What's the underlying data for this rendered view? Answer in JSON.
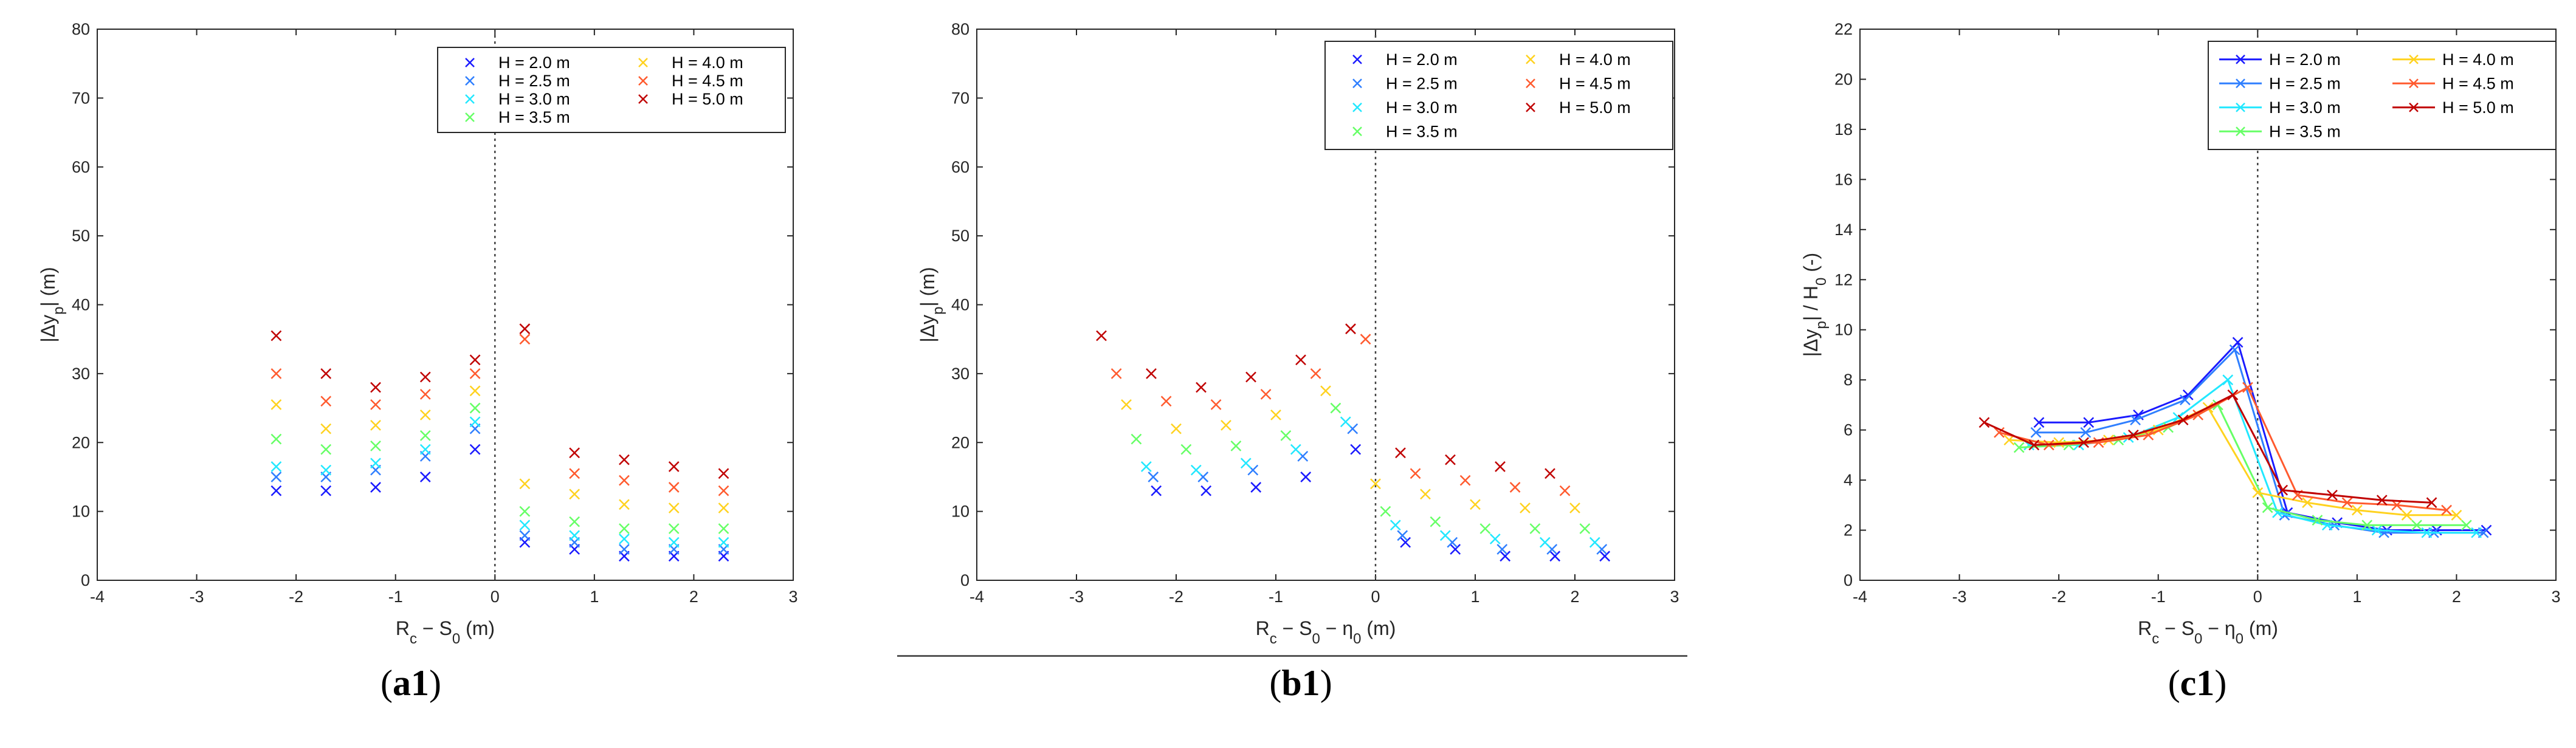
{
  "captions": [
    {
      "open": "(",
      "id": "a1",
      "close": ")"
    },
    {
      "open": "(",
      "id": "b1",
      "close": ")"
    },
    {
      "open": "(",
      "id": "c1",
      "close": ")"
    }
  ],
  "series_colors": [
    "#1a1aff",
    "#2f7fff",
    "#22e8ff",
    "#66ff66",
    "#ffd21f",
    "#ff5a2e",
    "#c00000"
  ],
  "chart_data": [
    {
      "type": "scatter",
      "xlabel": "R_c − S_0 (m)",
      "ylabel": "|Δy_p| (m)",
      "xlim": [
        -4,
        3
      ],
      "ylim": [
        0,
        80
      ],
      "xticks": [
        -4,
        -3,
        -2,
        -1,
        0,
        1,
        2,
        3
      ],
      "yticks": [
        0,
        10,
        20,
        30,
        40,
        50,
        60,
        70,
        80
      ],
      "vline_x": 0,
      "grid": false,
      "legend_position": "top-right",
      "series": [
        {
          "name": "H = 2.0 m",
          "points": [
            [
              -2.2,
              13
            ],
            [
              -1.7,
              13
            ],
            [
              -1.2,
              13.5
            ],
            [
              -0.7,
              15
            ],
            [
              -0.2,
              19
            ],
            [
              0.3,
              5.5
            ],
            [
              0.8,
              4.5
            ],
            [
              1.3,
              3.5
            ],
            [
              1.8,
              3.5
            ],
            [
              2.3,
              3.5
            ]
          ]
        },
        {
          "name": "H = 2.5 m",
          "points": [
            [
              -2.2,
              15
            ],
            [
              -1.7,
              15
            ],
            [
              -1.2,
              16
            ],
            [
              -0.7,
              18
            ],
            [
              -0.2,
              22
            ],
            [
              0.3,
              6.5
            ],
            [
              0.8,
              5.5
            ],
            [
              1.3,
              4.5
            ],
            [
              1.8,
              4.5
            ],
            [
              2.3,
              4.5
            ]
          ]
        },
        {
          "name": "H = 3.0 m",
          "points": [
            [
              -2.2,
              16.5
            ],
            [
              -1.7,
              16
            ],
            [
              -1.2,
              17
            ],
            [
              -0.7,
              19
            ],
            [
              -0.2,
              23
            ],
            [
              0.3,
              8
            ],
            [
              0.8,
              6.5
            ],
            [
              1.3,
              6
            ],
            [
              1.8,
              5.5
            ],
            [
              2.3,
              5.5
            ]
          ]
        },
        {
          "name": "H = 3.5 m",
          "points": [
            [
              -2.2,
              20.5
            ],
            [
              -1.7,
              19
            ],
            [
              -1.2,
              19.5
            ],
            [
              -0.7,
              21
            ],
            [
              -0.2,
              25
            ],
            [
              0.3,
              10
            ],
            [
              0.8,
              8.5
            ],
            [
              1.3,
              7.5
            ],
            [
              1.8,
              7.5
            ],
            [
              2.3,
              7.5
            ]
          ]
        },
        {
          "name": "H = 4.0 m",
          "points": [
            [
              -2.2,
              25.5
            ],
            [
              -1.7,
              22
            ],
            [
              -1.2,
              22.5
            ],
            [
              -0.7,
              24
            ],
            [
              -0.2,
              27.5
            ],
            [
              0.3,
              14
            ],
            [
              0.8,
              12.5
            ],
            [
              1.3,
              11
            ],
            [
              1.8,
              10.5
            ],
            [
              2.3,
              10.5
            ]
          ]
        },
        {
          "name": "H = 4.5 m",
          "points": [
            [
              -2.2,
              30
            ],
            [
              -1.7,
              26
            ],
            [
              -1.2,
              25.5
            ],
            [
              -0.7,
              27
            ],
            [
              -0.2,
              30
            ],
            [
              0.3,
              35
            ],
            [
              0.8,
              15.5
            ],
            [
              1.3,
              14.5
            ],
            [
              1.8,
              13.5
            ],
            [
              2.3,
              13
            ]
          ]
        },
        {
          "name": "H = 5.0 m",
          "points": [
            [
              -2.2,
              35.5
            ],
            [
              -1.7,
              30
            ],
            [
              -1.2,
              28
            ],
            [
              -0.7,
              29.5
            ],
            [
              -0.2,
              32
            ],
            [
              0.3,
              36.5
            ],
            [
              0.8,
              18.5
            ],
            [
              1.3,
              17.5
            ],
            [
              1.8,
              16.5
            ],
            [
              2.3,
              15.5
            ]
          ]
        }
      ]
    },
    {
      "type": "scatter",
      "xlabel": "R_c − S_0 − η_0 (m)",
      "ylabel": "|Δy_p| (m)",
      "xlim": [
        -4,
        3
      ],
      "ylim": [
        0,
        80
      ],
      "xticks": [
        -4,
        -3,
        -2,
        -1,
        0,
        1,
        2,
        3
      ],
      "yticks": [
        0,
        10,
        20,
        30,
        40,
        50,
        60,
        70,
        80
      ],
      "vline_x": 0,
      "grid": false,
      "legend_position": "top-right",
      "series": [
        {
          "name": "H = 2.0 m",
          "points": [
            [
              -2.2,
              13
            ],
            [
              -1.7,
              13
            ],
            [
              -1.2,
              13.5
            ],
            [
              -0.7,
              15
            ],
            [
              -0.2,
              19
            ],
            [
              0.3,
              5.5
            ],
            [
              0.8,
              4.5
            ],
            [
              1.3,
              3.5
            ],
            [
              1.8,
              3.5
            ],
            [
              2.3,
              3.5
            ]
          ]
        },
        {
          "name": "H = 2.5 m",
          "points": [
            [
              -2.23,
              15
            ],
            [
              -1.73,
              15
            ],
            [
              -1.23,
              16
            ],
            [
              -0.73,
              18
            ],
            [
              -0.23,
              22
            ],
            [
              0.27,
              6.5
            ],
            [
              0.77,
              5.5
            ],
            [
              1.27,
              4.5
            ],
            [
              1.77,
              4.5
            ],
            [
              2.27,
              4.5
            ]
          ]
        },
        {
          "name": "H = 3.0 m",
          "points": [
            [
              -2.3,
              16.5
            ],
            [
              -1.8,
              16
            ],
            [
              -1.3,
              17
            ],
            [
              -0.8,
              19
            ],
            [
              -0.3,
              23
            ],
            [
              0.2,
              8
            ],
            [
              0.7,
              6.5
            ],
            [
              1.2,
              6
            ],
            [
              1.7,
              5.5
            ],
            [
              2.2,
              5.5
            ]
          ]
        },
        {
          "name": "H = 3.5 m",
          "points": [
            [
              -2.4,
              20.5
            ],
            [
              -1.9,
              19
            ],
            [
              -1.4,
              19.5
            ],
            [
              -0.9,
              21
            ],
            [
              -0.4,
              25
            ],
            [
              0.1,
              10
            ],
            [
              0.6,
              8.5
            ],
            [
              1.1,
              7.5
            ],
            [
              1.6,
              7.5
            ],
            [
              2.1,
              7.5
            ]
          ]
        },
        {
          "name": "H = 4.0 m",
          "points": [
            [
              -2.5,
              25.5
            ],
            [
              -2.0,
              22
            ],
            [
              -1.5,
              22.5
            ],
            [
              -1.0,
              24
            ],
            [
              -0.5,
              27.5
            ],
            [
              0.0,
              14
            ],
            [
              0.5,
              12.5
            ],
            [
              1.0,
              11
            ],
            [
              1.5,
              10.5
            ],
            [
              2.0,
              10.5
            ]
          ]
        },
        {
          "name": "H = 4.5 m",
          "points": [
            [
              -2.6,
              30
            ],
            [
              -2.1,
              26
            ],
            [
              -1.6,
              25.5
            ],
            [
              -1.1,
              27
            ],
            [
              -0.6,
              30
            ],
            [
              -0.1,
              35
            ],
            [
              0.4,
              15.5
            ],
            [
              0.9,
              14.5
            ],
            [
              1.4,
              13.5
            ],
            [
              1.9,
              13
            ]
          ]
        },
        {
          "name": "H = 5.0 m",
          "points": [
            [
              -2.75,
              35.5
            ],
            [
              -2.25,
              30
            ],
            [
              -1.75,
              28
            ],
            [
              -1.25,
              29.5
            ],
            [
              -0.75,
              32
            ],
            [
              -0.25,
              36.5
            ],
            [
              0.25,
              18.5
            ],
            [
              0.75,
              17.5
            ],
            [
              1.25,
              16.5
            ],
            [
              1.75,
              15.5
            ]
          ]
        }
      ]
    },
    {
      "type": "line",
      "xlabel": "R_c − S_0 − η_0 (m)",
      "ylabel": "|Δy_p| / H_0 (-)",
      "xlim": [
        -4,
        3
      ],
      "ylim": [
        0,
        22
      ],
      "xticks": [
        -4,
        -3,
        -2,
        -1,
        0,
        1,
        2,
        3
      ],
      "yticks": [
        0,
        2,
        4,
        6,
        8,
        10,
        12,
        14,
        16,
        18,
        20,
        22
      ],
      "vline_x": 0,
      "grid": false,
      "legend_position": "top-right",
      "series": [
        {
          "name": "H = 2.0 m",
          "points": [
            [
              -2.2,
              6.3
            ],
            [
              -1.7,
              6.3
            ],
            [
              -1.2,
              6.6
            ],
            [
              -0.7,
              7.4
            ],
            [
              -0.2,
              9.5
            ],
            [
              0.3,
              2.7
            ],
            [
              0.8,
              2.3
            ],
            [
              1.3,
              2.0
            ],
            [
              1.8,
              2.0
            ],
            [
              2.3,
              2.0
            ]
          ]
        },
        {
          "name": "H = 2.5 m",
          "points": [
            [
              -2.23,
              5.9
            ],
            [
              -1.73,
              5.9
            ],
            [
              -1.23,
              6.4
            ],
            [
              -0.73,
              7.2
            ],
            [
              -0.23,
              9.2
            ],
            [
              0.27,
              2.6
            ],
            [
              0.77,
              2.2
            ],
            [
              1.27,
              1.9
            ],
            [
              1.77,
              1.9
            ],
            [
              2.27,
              1.9
            ]
          ]
        },
        {
          "name": "H = 3.0 m",
          "points": [
            [
              -2.3,
              5.4
            ],
            [
              -1.8,
              5.4
            ],
            [
              -1.3,
              5.7
            ],
            [
              -0.8,
              6.5
            ],
            [
              -0.3,
              8.0
            ],
            [
              0.2,
              2.7
            ],
            [
              0.7,
              2.2
            ],
            [
              1.2,
              2.0
            ],
            [
              1.7,
              1.9
            ],
            [
              2.2,
              1.9
            ]
          ]
        },
        {
          "name": "H = 3.5 m",
          "points": [
            [
              -2.4,
              5.3
            ],
            [
              -1.9,
              5.4
            ],
            [
              -1.4,
              5.6
            ],
            [
              -0.9,
              6.1
            ],
            [
              -0.4,
              7.0
            ],
            [
              0.1,
              2.9
            ],
            [
              0.6,
              2.4
            ],
            [
              1.1,
              2.2
            ],
            [
              1.6,
              2.2
            ],
            [
              2.1,
              2.2
            ]
          ]
        },
        {
          "name": "H = 4.0 m",
          "points": [
            [
              -2.5,
              5.6
            ],
            [
              -2.0,
              5.5
            ],
            [
              -1.5,
              5.6
            ],
            [
              -1.0,
              6.0
            ],
            [
              -0.5,
              6.9
            ],
            [
              0.0,
              3.5
            ],
            [
              0.5,
              3.1
            ],
            [
              1.0,
              2.8
            ],
            [
              1.5,
              2.6
            ],
            [
              2.0,
              2.6
            ]
          ]
        },
        {
          "name": "H = 4.5 m",
          "points": [
            [
              -2.6,
              5.9
            ],
            [
              -2.1,
              5.4
            ],
            [
              -1.6,
              5.5
            ],
            [
              -1.1,
              5.8
            ],
            [
              -0.6,
              6.6
            ],
            [
              -0.1,
              7.7
            ],
            [
              0.4,
              3.4
            ],
            [
              0.9,
              3.1
            ],
            [
              1.4,
              3.0
            ],
            [
              1.9,
              2.8
            ]
          ]
        },
        {
          "name": "H = 5.0 m",
          "points": [
            [
              -2.75,
              6.3
            ],
            [
              -2.25,
              5.4
            ],
            [
              -1.75,
              5.5
            ],
            [
              -1.25,
              5.8
            ],
            [
              -0.75,
              6.4
            ],
            [
              -0.25,
              7.4
            ],
            [
              0.25,
              3.6
            ],
            [
              0.75,
              3.4
            ],
            [
              1.25,
              3.2
            ],
            [
              1.75,
              3.1
            ]
          ]
        }
      ]
    }
  ]
}
